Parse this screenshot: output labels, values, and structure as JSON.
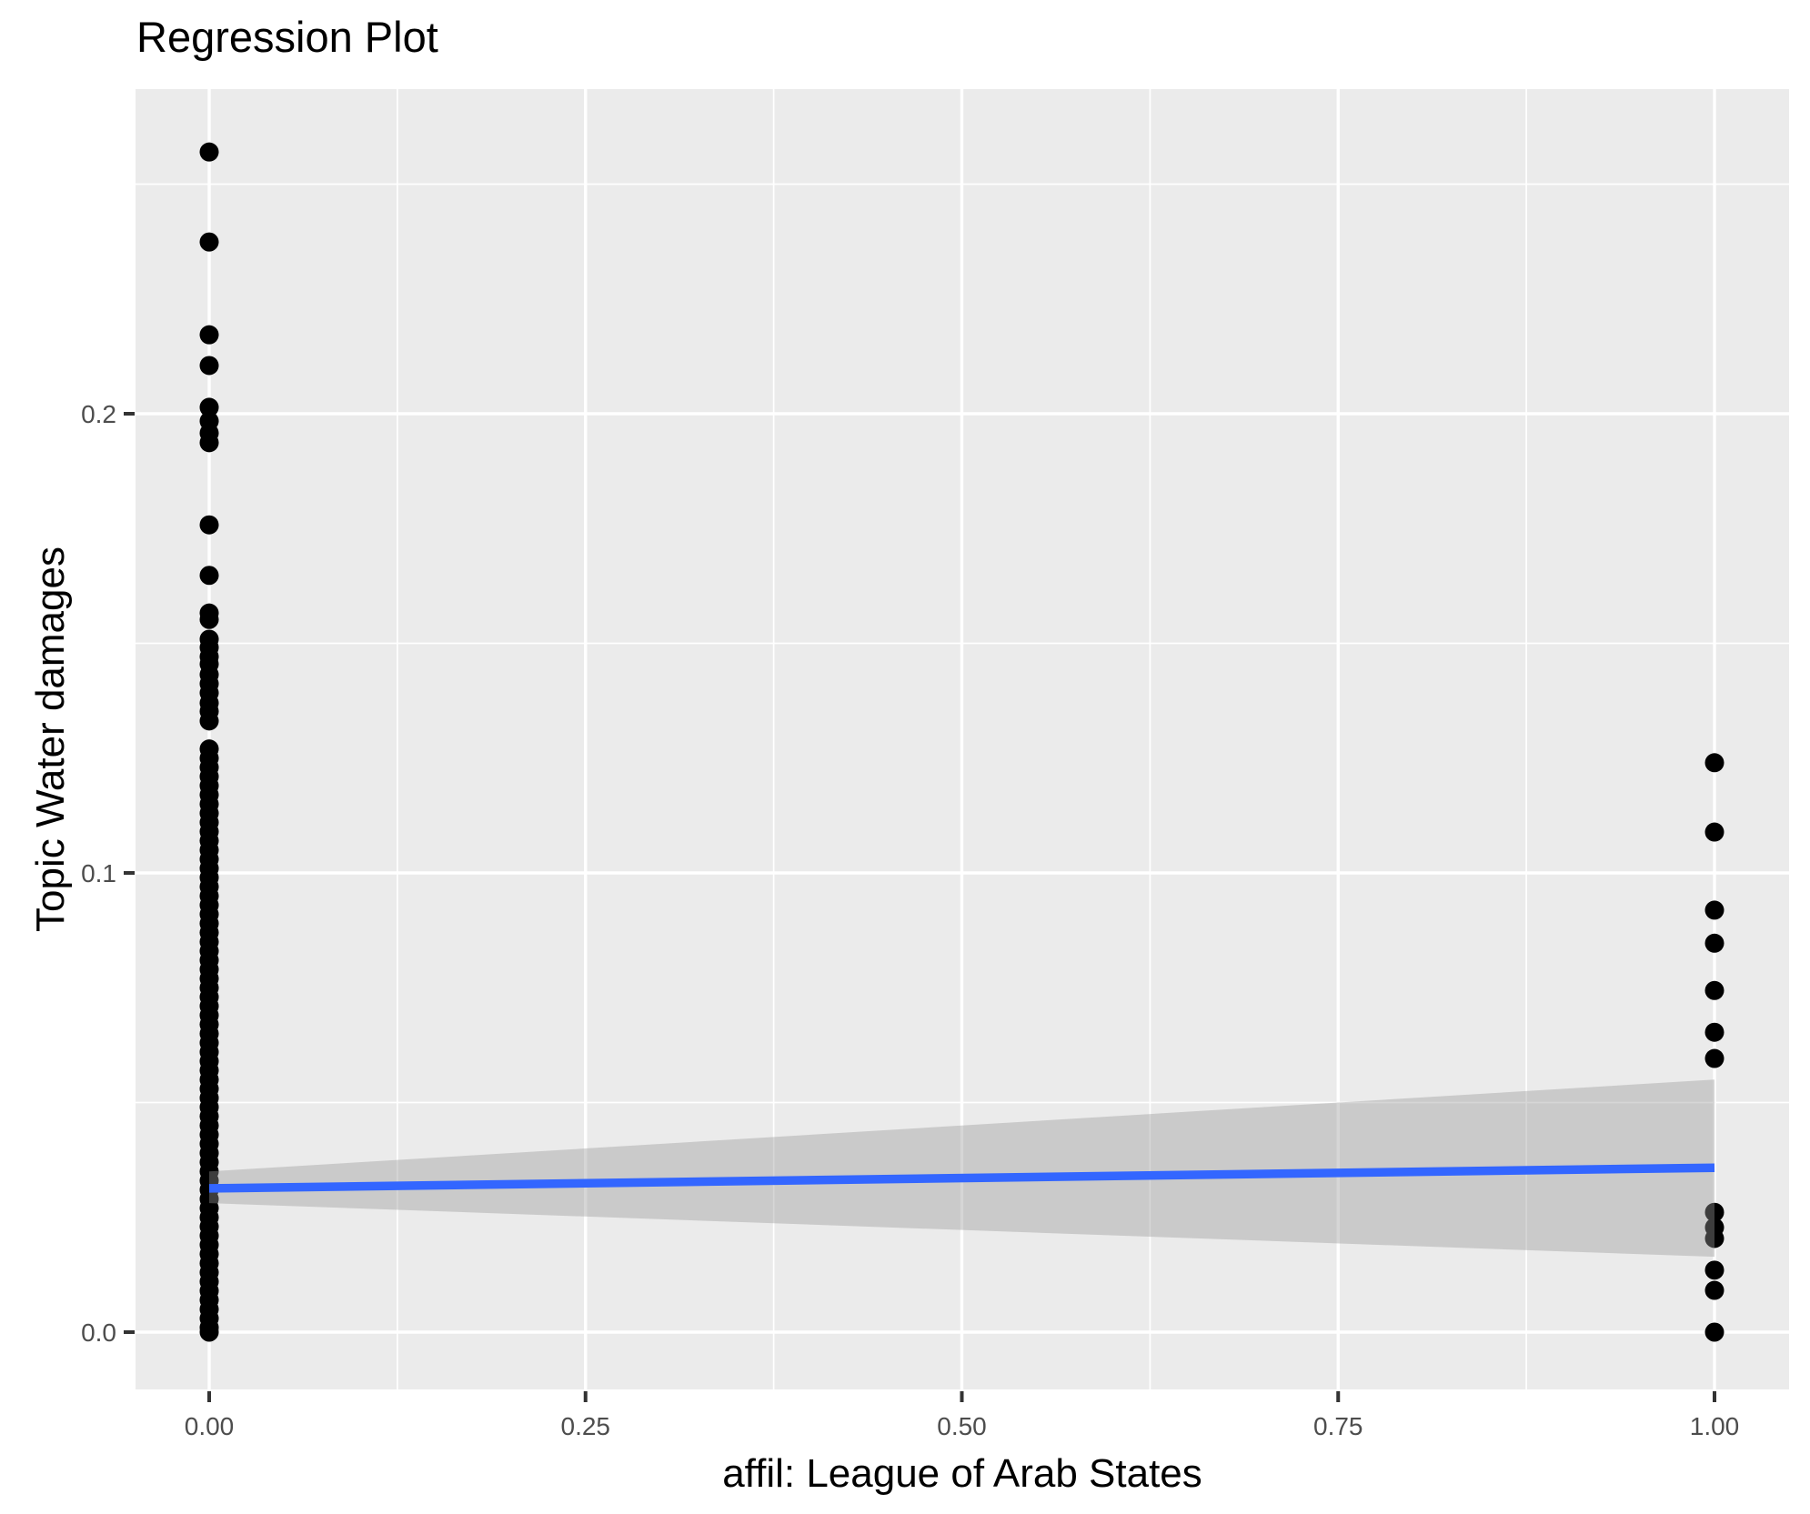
{
  "title": "Regression Plot",
  "colors": {
    "panel_background": "#EBEBEB",
    "gridline": "#FFFFFF",
    "point": "#000000",
    "regression_line": "#3366FF",
    "ribbon": "rgba(153,153,153,0.4)",
    "tick_mark": "#333333",
    "tick_label": "#4D4D4D",
    "title_text": "#000000"
  },
  "chart_data": {
    "type": "scatter",
    "title": "Regression Plot",
    "xlabel": "affil: League of Arab States",
    "ylabel": "Topic Water damages",
    "xlim": [
      -0.049,
      1.049
    ],
    "ylim": [
      -0.0125,
      0.2707
    ],
    "grid": true,
    "legend_position": "none",
    "x_ticks": [
      0,
      0.25,
      0.5,
      0.75,
      1
    ],
    "x_tick_labels": [
      "0.00",
      "0.25",
      "0.50",
      "0.75",
      "1.00"
    ],
    "y_ticks": [
      0,
      0.1,
      0.2
    ],
    "y_tick_labels": [
      "0.0",
      "0.1",
      "0.2"
    ],
    "x_minor_gridlines": [
      0.125,
      0.375,
      0.625,
      0.875
    ],
    "y_minor_gridlines": [
      0.05,
      0.15,
      0.25
    ],
    "series": [
      {
        "name": "affil = 0",
        "x": 0,
        "y": [
          0.257,
          0.2374,
          0.2172,
          0.2105,
          0.2014,
          0.1984,
          0.1958,
          0.1937,
          0.1758,
          0.1648,
          0.1566,
          0.1552,
          0.1509,
          0.1491,
          0.1471,
          0.1455,
          0.1432,
          0.1412,
          0.1392,
          0.137,
          0.1352,
          0.1331,
          0.127,
          0.125,
          0.123,
          0.121,
          0.119,
          0.117,
          0.115,
          0.113,
          0.111,
          0.109,
          0.107,
          0.105,
          0.103,
          0.101,
          0.099,
          0.097,
          0.095,
          0.093,
          0.091,
          0.089,
          0.087,
          0.085,
          0.083,
          0.081,
          0.079,
          0.077,
          0.075,
          0.073,
          0.071,
          0.069,
          0.067,
          0.065,
          0.063,
          0.061,
          0.059,
          0.057,
          0.055,
          0.053,
          0.051,
          0.049,
          0.047,
          0.045,
          0.043,
          0.041,
          0.039,
          0.037,
          0.035,
          0.033,
          0.031,
          0.029,
          0.027,
          0.025,
          0.023,
          0.021,
          0.019,
          0.017,
          0.015,
          0.013,
          0.011,
          0.009,
          0.007,
          0.005,
          0.003,
          0.001,
          0.0
        ]
      },
      {
        "name": "affil = 1",
        "x": 1,
        "y": [
          0.124,
          0.1089,
          0.0919,
          0.0847,
          0.0744,
          0.0653,
          0.0596,
          0.0261,
          0.0228,
          0.0204,
          0.0135,
          0.0091,
          0.0
        ]
      }
    ],
    "regression": {
      "x": [
        0,
        1
      ],
      "y": [
        0.0313,
        0.0358
      ]
    },
    "confidence_ribbon": {
      "x": [
        0,
        1
      ],
      "upper": [
        0.035,
        0.055
      ],
      "lower": [
        0.0281,
        0.0164
      ]
    }
  }
}
